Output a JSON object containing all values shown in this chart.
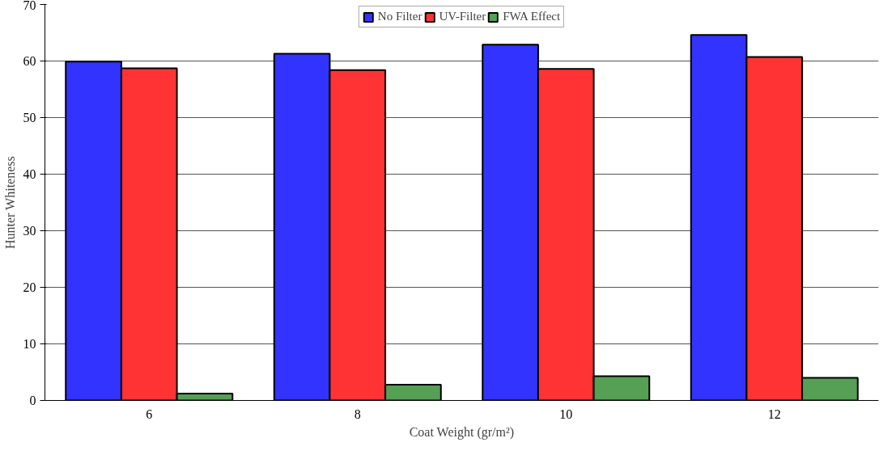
{
  "chart_data": {
    "type": "bar",
    "xlabel": "Coat Weight (gr/m²)",
    "ylabel": "Hunter Whiteness",
    "categories": [
      "6",
      "8",
      "10",
      "12"
    ],
    "series": [
      {
        "name": "No Filter",
        "color": "#3333ff",
        "values": [
          59.9,
          61.3,
          62.9,
          64.6
        ]
      },
      {
        "name": "UV-Filter",
        "color": "#ff3333",
        "values": [
          58.7,
          58.4,
          58.6,
          60.7
        ]
      },
      {
        "name": "FWA Effect",
        "color": "#55a055",
        "values": [
          1.2,
          2.8,
          4.3,
          4.0
        ]
      }
    ],
    "ylim": [
      0,
      70
    ],
    "yticks": [
      0,
      10,
      20,
      30,
      40,
      50,
      60,
      70
    ],
    "grid": "y",
    "legend": "top"
  }
}
